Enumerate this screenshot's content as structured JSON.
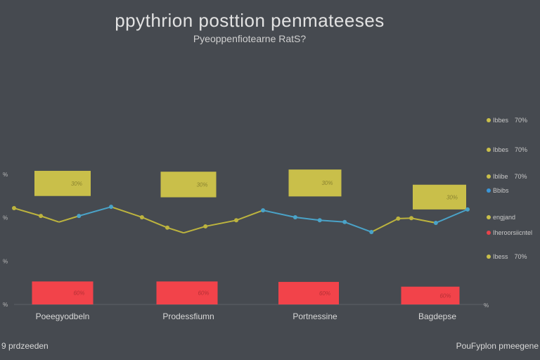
{
  "chart_data": {
    "type": "bar",
    "title": "ppythrion posttion penmateeses",
    "subtitle": "Pyeoppenfiotearne RatS?",
    "categories": [
      "Poeegyodbeln",
      "Prodessfiumn",
      "Portnessine",
      "Bagdepse"
    ],
    "ylim": [
      0,
      3.2
    ],
    "y_ticks": [
      {
        "value": 0,
        "label": "%"
      },
      {
        "value": 1,
        "label": "%"
      },
      {
        "value": 2,
        "label": "%"
      },
      {
        "value": 3,
        "label": "%"
      }
    ],
    "right_tick_label": "%",
    "grid": false,
    "bar_series": [
      {
        "name": "yellow",
        "color": "#c9bf4a",
        "label_color": "#8a8330",
        "ranges": [
          [
            2.5,
            3.08
          ],
          [
            2.47,
            3.06
          ],
          [
            2.49,
            3.11
          ],
          [
            2.19,
            2.76
          ]
        ],
        "labels": [
          "30%",
          "30%",
          "30%",
          "30%"
        ]
      },
      {
        "name": "red",
        "color": "#f2434a",
        "label_color": "#b53035",
        "ranges": [
          [
            0,
            0.53
          ],
          [
            0,
            0.53
          ],
          [
            0,
            0.52
          ],
          [
            0,
            0.41
          ]
        ],
        "labels": [
          "60%",
          "60%",
          "60%",
          "60%"
        ]
      }
    ],
    "line_series": {
      "color": "#bdb43e",
      "alt_color": "#4aa3c8",
      "x": [
        0,
        5.9,
        9.9,
        14.3,
        21.4,
        28.2,
        33.8,
        37.4,
        42.2,
        49,
        54.9,
        62,
        67.4,
        72.9,
        78.8,
        84.7,
        87.6,
        93,
        100
      ],
      "y": [
        2.22,
        2.04,
        1.9,
        2.04,
        2.25,
        2.01,
        1.77,
        1.65,
        1.8,
        1.94,
        2.17,
        2.01,
        1.94,
        1.9,
        1.67,
        1.98,
        1.99,
        1.88,
        2.19
      ],
      "segment_alt": [
        3,
        10,
        11,
        12,
        13,
        17
      ]
    },
    "legend": [
      {
        "label": "Ibbes",
        "value": "70%",
        "color": "#c9bf4a"
      },
      {
        "label": "Ibbes",
        "value": "70%",
        "color": "#c9bf4a"
      },
      {
        "label": "Iblibe",
        "value": "70%",
        "color": "#c9bf4a"
      },
      {
        "label": "Bbibs",
        "value": "",
        "color": "#3a96d8"
      },
      {
        "label": "engjand",
        "value": "",
        "color": "#c9bf4a"
      },
      {
        "label": "Iheroorsiicntel",
        "value": "",
        "color": "#e8434a"
      },
      {
        "label": "Ibess",
        "value": "70%",
        "color": "#c9bf4a"
      }
    ],
    "legend_placement": "right"
  },
  "footer": {
    "left": "9 prdzeeden",
    "right": "PouFyplon pmeegene"
  }
}
